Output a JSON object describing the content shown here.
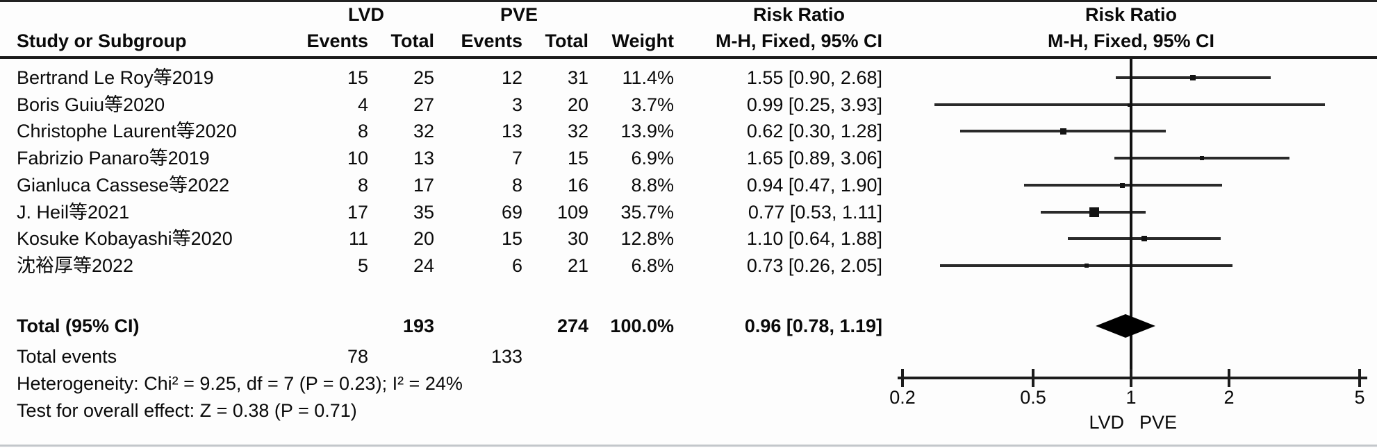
{
  "header": {
    "group1": "LVD",
    "group2": "PVE",
    "col_study": "Study or Subgroup",
    "col_events1": "Events",
    "col_total1": "Total",
    "col_events2": "Events",
    "col_total2": "Total",
    "col_weight": "Weight",
    "col_rr_line1": "Risk Ratio",
    "col_rr_line2": "M-H, Fixed, 95% CI",
    "plot_line1": "Risk Ratio",
    "plot_line2": "M-H, Fixed, 95% CI"
  },
  "chart_data": {
    "type": "scatter",
    "subtype": "forest-plot",
    "title": "Risk Ratio",
    "effect_measure": "Risk Ratio",
    "method": "M-H, Fixed, 95% CI",
    "x_scale": "log10",
    "x_range": [
      0.2,
      5
    ],
    "x_ticks": [
      0.2,
      0.5,
      1,
      2,
      5
    ],
    "x_tick_labels": [
      "0.2",
      "0.5",
      "1",
      "2",
      "5"
    ],
    "no_effect_line": 1,
    "favours_left": "LVD",
    "favours_right": "PVE",
    "studies": [
      {
        "name": "Bertrand Le Roy等2019",
        "lvd_events": 15,
        "lvd_total": 25,
        "pve_events": 12,
        "pve_total": 31,
        "weight_pct": 11.4,
        "weight_label": "11.4%",
        "rr": 1.55,
        "ci_low": 0.9,
        "ci_high": 2.68,
        "rr_label": "1.55 [0.90, 2.68]"
      },
      {
        "name": "Boris Guiu等2020",
        "lvd_events": 4,
        "lvd_total": 27,
        "pve_events": 3,
        "pve_total": 20,
        "weight_pct": 3.7,
        "weight_label": "3.7%",
        "rr": 0.99,
        "ci_low": 0.25,
        "ci_high": 3.93,
        "rr_label": "0.99 [0.25, 3.93]"
      },
      {
        "name": "Christophe Laurent等2020",
        "lvd_events": 8,
        "lvd_total": 32,
        "pve_events": 13,
        "pve_total": 32,
        "weight_pct": 13.9,
        "weight_label": "13.9%",
        "rr": 0.62,
        "ci_low": 0.3,
        "ci_high": 1.28,
        "rr_label": "0.62 [0.30, 1.28]"
      },
      {
        "name": "Fabrizio Panaro等2019",
        "lvd_events": 10,
        "lvd_total": 13,
        "pve_events": 7,
        "pve_total": 15,
        "weight_pct": 6.9,
        "weight_label": "6.9%",
        "rr": 1.65,
        "ci_low": 0.89,
        "ci_high": 3.06,
        "rr_label": "1.65 [0.89, 3.06]"
      },
      {
        "name": "Gianluca Cassese等2022",
        "lvd_events": 8,
        "lvd_total": 17,
        "pve_events": 8,
        "pve_total": 16,
        "weight_pct": 8.8,
        "weight_label": "8.8%",
        "rr": 0.94,
        "ci_low": 0.47,
        "ci_high": 1.9,
        "rr_label": "0.94 [0.47, 1.90]"
      },
      {
        "name": "J. Heil等2021",
        "lvd_events": 17,
        "lvd_total": 35,
        "pve_events": 69,
        "pve_total": 109,
        "weight_pct": 35.7,
        "weight_label": "35.7%",
        "rr": 0.77,
        "ci_low": 0.53,
        "ci_high": 1.11,
        "rr_label": "0.77 [0.53, 1.11]"
      },
      {
        "name": "Kosuke Kobayashi等2020",
        "lvd_events": 11,
        "lvd_total": 20,
        "pve_events": 15,
        "pve_total": 30,
        "weight_pct": 12.8,
        "weight_label": "12.8%",
        "rr": 1.1,
        "ci_low": 0.64,
        "ci_high": 1.88,
        "rr_label": "1.10 [0.64, 1.88]"
      },
      {
        "name": "沈裕厚等2022",
        "lvd_events": 5,
        "lvd_total": 24,
        "pve_events": 6,
        "pve_total": 21,
        "weight_pct": 6.8,
        "weight_label": "6.8%",
        "rr": 0.73,
        "ci_low": 0.26,
        "ci_high": 2.05,
        "rr_label": "0.73 [0.26, 2.05]"
      }
    ],
    "total": {
      "label": "Total (95% CI)",
      "lvd_total": "193",
      "pve_total": "274",
      "weight_label": "100.0%",
      "rr": 0.96,
      "ci_low": 0.78,
      "ci_high": 1.19,
      "rr_label": "0.96 [0.78, 1.19]"
    },
    "total_events": {
      "label": "Total events",
      "lvd": "78",
      "pve": "133"
    },
    "heterogeneity": "Heterogeneity: Chi² = 9.25, df = 7 (P = 0.23); I² = 24%",
    "overall_effect": "Test for overall effect: Z = 0.38 (P = 0.71)"
  }
}
